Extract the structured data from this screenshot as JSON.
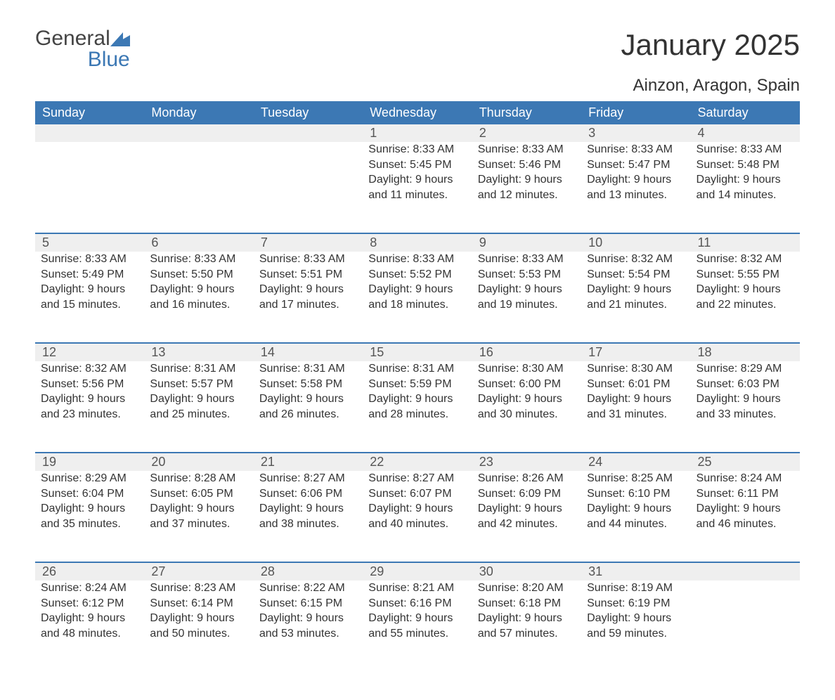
{
  "logo": {
    "line1": "General",
    "line2": "Blue"
  },
  "title": "January 2025",
  "location": "Ainzon, Aragon, Spain",
  "colors": {
    "accent": "#3c78b4",
    "row_bg": "#efefef",
    "text": "#333333",
    "white": "#ffffff"
  },
  "day_headers": [
    "Sunday",
    "Monday",
    "Tuesday",
    "Wednesday",
    "Thursday",
    "Friday",
    "Saturday"
  ],
  "weeks": [
    [
      null,
      null,
      null,
      {
        "n": "1",
        "sunrise": "Sunrise: 8:33 AM",
        "sunset": "Sunset: 5:45 PM",
        "dl1": "Daylight: 9 hours",
        "dl2": "and 11 minutes."
      },
      {
        "n": "2",
        "sunrise": "Sunrise: 8:33 AM",
        "sunset": "Sunset: 5:46 PM",
        "dl1": "Daylight: 9 hours",
        "dl2": "and 12 minutes."
      },
      {
        "n": "3",
        "sunrise": "Sunrise: 8:33 AM",
        "sunset": "Sunset: 5:47 PM",
        "dl1": "Daylight: 9 hours",
        "dl2": "and 13 minutes."
      },
      {
        "n": "4",
        "sunrise": "Sunrise: 8:33 AM",
        "sunset": "Sunset: 5:48 PM",
        "dl1": "Daylight: 9 hours",
        "dl2": "and 14 minutes."
      }
    ],
    [
      {
        "n": "5",
        "sunrise": "Sunrise: 8:33 AM",
        "sunset": "Sunset: 5:49 PM",
        "dl1": "Daylight: 9 hours",
        "dl2": "and 15 minutes."
      },
      {
        "n": "6",
        "sunrise": "Sunrise: 8:33 AM",
        "sunset": "Sunset: 5:50 PM",
        "dl1": "Daylight: 9 hours",
        "dl2": "and 16 minutes."
      },
      {
        "n": "7",
        "sunrise": "Sunrise: 8:33 AM",
        "sunset": "Sunset: 5:51 PM",
        "dl1": "Daylight: 9 hours",
        "dl2": "and 17 minutes."
      },
      {
        "n": "8",
        "sunrise": "Sunrise: 8:33 AM",
        "sunset": "Sunset: 5:52 PM",
        "dl1": "Daylight: 9 hours",
        "dl2": "and 18 minutes."
      },
      {
        "n": "9",
        "sunrise": "Sunrise: 8:33 AM",
        "sunset": "Sunset: 5:53 PM",
        "dl1": "Daylight: 9 hours",
        "dl2": "and 19 minutes."
      },
      {
        "n": "10",
        "sunrise": "Sunrise: 8:32 AM",
        "sunset": "Sunset: 5:54 PM",
        "dl1": "Daylight: 9 hours",
        "dl2": "and 21 minutes."
      },
      {
        "n": "11",
        "sunrise": "Sunrise: 8:32 AM",
        "sunset": "Sunset: 5:55 PM",
        "dl1": "Daylight: 9 hours",
        "dl2": "and 22 minutes."
      }
    ],
    [
      {
        "n": "12",
        "sunrise": "Sunrise: 8:32 AM",
        "sunset": "Sunset: 5:56 PM",
        "dl1": "Daylight: 9 hours",
        "dl2": "and 23 minutes."
      },
      {
        "n": "13",
        "sunrise": "Sunrise: 8:31 AM",
        "sunset": "Sunset: 5:57 PM",
        "dl1": "Daylight: 9 hours",
        "dl2": "and 25 minutes."
      },
      {
        "n": "14",
        "sunrise": "Sunrise: 8:31 AM",
        "sunset": "Sunset: 5:58 PM",
        "dl1": "Daylight: 9 hours",
        "dl2": "and 26 minutes."
      },
      {
        "n": "15",
        "sunrise": "Sunrise: 8:31 AM",
        "sunset": "Sunset: 5:59 PM",
        "dl1": "Daylight: 9 hours",
        "dl2": "and 28 minutes."
      },
      {
        "n": "16",
        "sunrise": "Sunrise: 8:30 AM",
        "sunset": "Sunset: 6:00 PM",
        "dl1": "Daylight: 9 hours",
        "dl2": "and 30 minutes."
      },
      {
        "n": "17",
        "sunrise": "Sunrise: 8:30 AM",
        "sunset": "Sunset: 6:01 PM",
        "dl1": "Daylight: 9 hours",
        "dl2": "and 31 minutes."
      },
      {
        "n": "18",
        "sunrise": "Sunrise: 8:29 AM",
        "sunset": "Sunset: 6:03 PM",
        "dl1": "Daylight: 9 hours",
        "dl2": "and 33 minutes."
      }
    ],
    [
      {
        "n": "19",
        "sunrise": "Sunrise: 8:29 AM",
        "sunset": "Sunset: 6:04 PM",
        "dl1": "Daylight: 9 hours",
        "dl2": "and 35 minutes."
      },
      {
        "n": "20",
        "sunrise": "Sunrise: 8:28 AM",
        "sunset": "Sunset: 6:05 PM",
        "dl1": "Daylight: 9 hours",
        "dl2": "and 37 minutes."
      },
      {
        "n": "21",
        "sunrise": "Sunrise: 8:27 AM",
        "sunset": "Sunset: 6:06 PM",
        "dl1": "Daylight: 9 hours",
        "dl2": "and 38 minutes."
      },
      {
        "n": "22",
        "sunrise": "Sunrise: 8:27 AM",
        "sunset": "Sunset: 6:07 PM",
        "dl1": "Daylight: 9 hours",
        "dl2": "and 40 minutes."
      },
      {
        "n": "23",
        "sunrise": "Sunrise: 8:26 AM",
        "sunset": "Sunset: 6:09 PM",
        "dl1": "Daylight: 9 hours",
        "dl2": "and 42 minutes."
      },
      {
        "n": "24",
        "sunrise": "Sunrise: 8:25 AM",
        "sunset": "Sunset: 6:10 PM",
        "dl1": "Daylight: 9 hours",
        "dl2": "and 44 minutes."
      },
      {
        "n": "25",
        "sunrise": "Sunrise: 8:24 AM",
        "sunset": "Sunset: 6:11 PM",
        "dl1": "Daylight: 9 hours",
        "dl2": "and 46 minutes."
      }
    ],
    [
      {
        "n": "26",
        "sunrise": "Sunrise: 8:24 AM",
        "sunset": "Sunset: 6:12 PM",
        "dl1": "Daylight: 9 hours",
        "dl2": "and 48 minutes."
      },
      {
        "n": "27",
        "sunrise": "Sunrise: 8:23 AM",
        "sunset": "Sunset: 6:14 PM",
        "dl1": "Daylight: 9 hours",
        "dl2": "and 50 minutes."
      },
      {
        "n": "28",
        "sunrise": "Sunrise: 8:22 AM",
        "sunset": "Sunset: 6:15 PM",
        "dl1": "Daylight: 9 hours",
        "dl2": "and 53 minutes."
      },
      {
        "n": "29",
        "sunrise": "Sunrise: 8:21 AM",
        "sunset": "Sunset: 6:16 PM",
        "dl1": "Daylight: 9 hours",
        "dl2": "and 55 minutes."
      },
      {
        "n": "30",
        "sunrise": "Sunrise: 8:20 AM",
        "sunset": "Sunset: 6:18 PM",
        "dl1": "Daylight: 9 hours",
        "dl2": "and 57 minutes."
      },
      {
        "n": "31",
        "sunrise": "Sunrise: 8:19 AM",
        "sunset": "Sunset: 6:19 PM",
        "dl1": "Daylight: 9 hours",
        "dl2": "and 59 minutes."
      },
      null
    ]
  ]
}
